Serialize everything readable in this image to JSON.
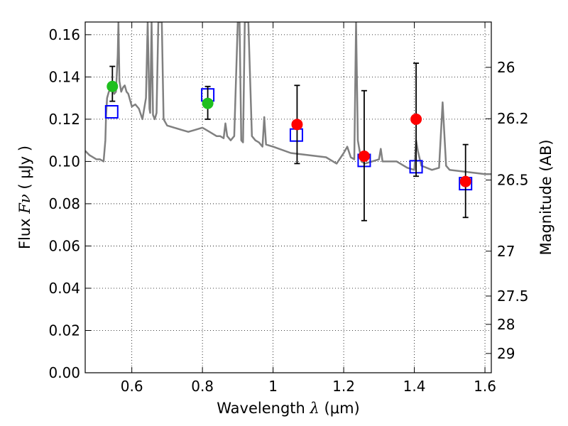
{
  "chart_data": {
    "type": "scatter",
    "xlabel_prefix": "Wavelength",
    "xlabel_symbol": "λ",
    "xlabel_unit": "(μm)",
    "ylabel_prefix": "Flux",
    "ylabel_symbol": "Fν",
    "ylabel_unit": "( μJy )",
    "y2label": "Magnitude (AB)",
    "xlim": [
      0.468,
      1.618
    ],
    "ylim": [
      0.0,
      0.166
    ],
    "xticks": [
      0.6,
      0.8,
      1.0,
      1.2,
      1.4,
      1.6
    ],
    "xtick_labels": [
      "0.6",
      "0.8",
      "1",
      "1.2",
      "1.4",
      "1.6"
    ],
    "yticks": [
      0.0,
      0.02,
      0.04,
      0.06,
      0.08,
      0.1,
      0.12,
      0.14,
      0.16
    ],
    "ytick_labels": [
      "0.00",
      "0.02",
      "0.04",
      "0.06",
      "0.08",
      "0.10",
      "0.12",
      "0.14",
      "0.16"
    ],
    "y2ticks": [
      26,
      26.2,
      26.5,
      27,
      27.5,
      28,
      29
    ],
    "y2tick_labels": [
      "26",
      "26.2",
      "26.5",
      "27",
      "27.5",
      "28",
      "29"
    ],
    "grid": true,
    "colors": {
      "model": "#808080",
      "observed_green": "#1fbf1f",
      "observed_red": "#ff0000",
      "model_box": "#0000ff",
      "errorbar": "#000000"
    },
    "series": [
      {
        "name": "model spectrum",
        "kind": "line",
        "x": [
          0.468,
          0.48,
          0.5,
          0.51,
          0.52,
          0.525,
          0.527,
          0.53,
          0.535,
          0.54,
          0.545,
          0.55,
          0.555,
          0.56,
          0.562,
          0.565,
          0.57,
          0.575,
          0.58,
          0.585,
          0.59,
          0.6,
          0.61,
          0.62,
          0.63,
          0.64,
          0.645,
          0.65,
          0.652,
          0.656,
          0.66,
          0.665,
          0.67,
          0.675,
          0.68,
          0.685,
          0.69,
          0.7,
          0.72,
          0.74,
          0.76,
          0.78,
          0.8,
          0.82,
          0.84,
          0.85,
          0.86,
          0.865,
          0.87,
          0.88,
          0.89,
          0.9,
          0.905,
          0.91,
          0.915,
          0.92,
          0.93,
          0.94,
          0.95,
          0.96,
          0.97,
          0.975,
          0.98,
          1.0,
          1.05,
          1.1,
          1.15,
          1.18,
          1.2,
          1.21,
          1.22,
          1.23,
          1.235,
          1.24,
          1.25,
          1.26,
          1.28,
          1.3,
          1.305,
          1.31,
          1.35,
          1.38,
          1.4,
          1.405,
          1.41,
          1.42,
          1.45,
          1.47,
          1.48,
          1.49,
          1.5,
          1.55,
          1.6,
          1.618
        ],
        "y": [
          0.105,
          0.103,
          0.101,
          0.101,
          0.1,
          0.11,
          0.121,
          0.13,
          0.133,
          0.134,
          0.134,
          0.132,
          0.133,
          0.15,
          0.166,
          0.138,
          0.133,
          0.135,
          0.136,
          0.133,
          0.132,
          0.126,
          0.127,
          0.125,
          0.12,
          0.13,
          0.166,
          0.125,
          0.123,
          0.166,
          0.122,
          0.12,
          0.123,
          0.166,
          0.166,
          0.166,
          0.12,
          0.117,
          0.116,
          0.115,
          0.114,
          0.115,
          0.116,
          0.114,
          0.112,
          0.112,
          0.111,
          0.118,
          0.112,
          0.11,
          0.112,
          0.166,
          0.166,
          0.11,
          0.109,
          0.166,
          0.166,
          0.112,
          0.11,
          0.109,
          0.107,
          0.121,
          0.108,
          0.107,
          0.104,
          0.103,
          0.102,
          0.099,
          0.104,
          0.107,
          0.102,
          0.101,
          0.166,
          0.11,
          0.1,
          0.099,
          0.1,
          0.101,
          0.106,
          0.1,
          0.1,
          0.097,
          0.096,
          0.11,
          0.105,
          0.098,
          0.096,
          0.097,
          0.128,
          0.098,
          0.096,
          0.095,
          0.094,
          0.094
        ]
      },
      {
        "name": "observed (green)",
        "kind": "points",
        "points": [
          {
            "x": 0.545,
            "y": 0.1355,
            "err_low": 0.007,
            "err_high": 0.0095
          },
          {
            "x": 0.815,
            "y": 0.1275,
            "err_low": 0.0075,
            "err_high": 0.008
          }
        ]
      },
      {
        "name": "observed (red)",
        "kind": "points",
        "points": [
          {
            "x": 1.068,
            "y": 0.1175,
            "err_low": 0.0185,
            "err_high": 0.0185
          },
          {
            "x": 1.258,
            "y": 0.1025,
            "err_low": 0.0305,
            "err_high": 0.031
          },
          {
            "x": 1.405,
            "y": 0.12,
            "err_low": 0.027,
            "err_high": 0.0265
          },
          {
            "x": 1.545,
            "y": 0.0905,
            "err_low": 0.017,
            "err_high": 0.0175
          }
        ]
      },
      {
        "name": "model photometry",
        "kind": "boxes",
        "points": [
          {
            "x": 0.543,
            "y": 0.1235
          },
          {
            "x": 0.815,
            "y": 0.1315
          },
          {
            "x": 1.066,
            "y": 0.1125
          },
          {
            "x": 1.258,
            "y": 0.1005
          },
          {
            "x": 1.405,
            "y": 0.0975
          },
          {
            "x": 1.545,
            "y": 0.0895
          }
        ]
      }
    ]
  }
}
